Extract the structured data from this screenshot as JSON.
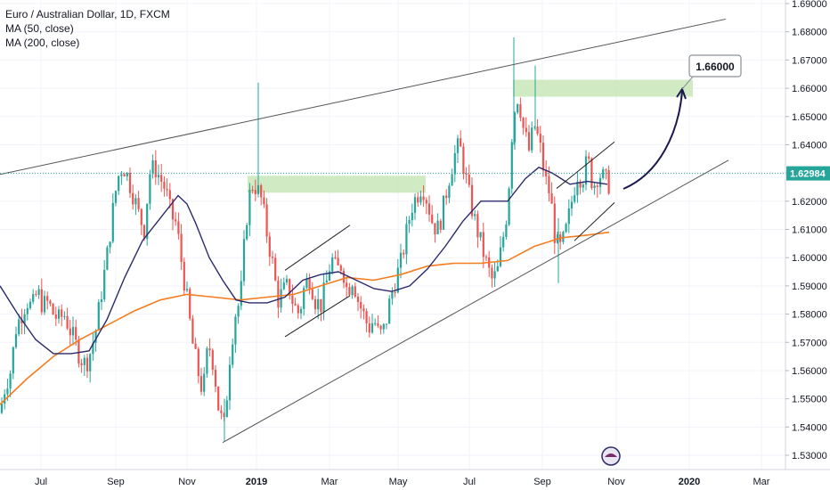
{
  "header": {
    "symbol_line": "Euro / Australian Dollar, 1D, FXCM",
    "ma50_label": "MA (50, close)",
    "ma200_label": "MA (200, close)"
  },
  "current_price_label": "1.62984",
  "target_label": "1.66000",
  "colors": {
    "bull": "#26a69a",
    "bear": "#ef5350",
    "ma50": "#2b2a6e",
    "ma200": "#f57c1f",
    "zone": "#c8e6b8",
    "price_line": "#26a69a",
    "trendline": "#555555",
    "arrow": "#1b1850"
  },
  "chart_data": {
    "type": "candlestick",
    "x_ticks": [
      "Jul",
      "Sep",
      "Nov",
      "2019",
      "Mar",
      "May",
      "Jul",
      "Sep",
      "Nov",
      "2020",
      "Mar"
    ],
    "y_ticks": [
      "1.69000",
      "1.68000",
      "1.67000",
      "1.66000",
      "1.65000",
      "1.64000",
      "1.63000",
      "1.62000",
      "1.61000",
      "1.60000",
      "1.59000",
      "1.58000",
      "1.57000",
      "1.56000",
      "1.55000",
      "1.54000",
      "1.53000"
    ],
    "ylim": [
      1.527,
      1.69
    ],
    "current_price": 1.62984,
    "target_price": 1.66,
    "price_path": [
      [
        0,
        1.545
      ],
      [
        6,
        1.555
      ],
      [
        12,
        1.56
      ],
      [
        18,
        1.575
      ],
      [
        24,
        1.58
      ],
      [
        30,
        1.585
      ],
      [
        36,
        1.582
      ],
      [
        42,
        1.588
      ],
      [
        48,
        1.583
      ],
      [
        54,
        1.584
      ],
      [
        60,
        1.58
      ],
      [
        66,
        1.578
      ],
      [
        72,
        1.58
      ],
      [
        78,
        1.575
      ],
      [
        84,
        1.57
      ],
      [
        90,
        1.565
      ],
      [
        96,
        1.562
      ],
      [
        102,
        1.567
      ],
      [
        108,
        1.575
      ],
      [
        114,
        1.588
      ],
      [
        120,
        1.6
      ],
      [
        126,
        1.615
      ],
      [
        132,
        1.628
      ],
      [
        138,
        1.633
      ],
      [
        144,
        1.628
      ],
      [
        150,
        1.622
      ],
      [
        156,
        1.615
      ],
      [
        162,
        1.61
      ],
      [
        168,
        1.63
      ],
      [
        174,
        1.632
      ],
      [
        180,
        1.628
      ],
      [
        186,
        1.624
      ],
      [
        192,
        1.615
      ],
      [
        198,
        1.612
      ],
      [
        204,
        1.598
      ],
      [
        210,
        1.585
      ],
      [
        216,
        1.57
      ],
      [
        222,
        1.56
      ],
      [
        228,
        1.552
      ],
      [
        234,
        1.57
      ],
      [
        240,
        1.562
      ],
      [
        246,
        1.545
      ],
      [
        252,
        1.54
      ],
      [
        258,
        1.565
      ],
      [
        264,
        1.58
      ],
      [
        270,
        1.585
      ],
      [
        276,
        1.612
      ],
      [
        282,
        1.626
      ],
      [
        288,
        1.625
      ],
      [
        294,
        1.62
      ],
      [
        300,
        1.608
      ],
      [
        306,
        1.598
      ],
      [
        312,
        1.585
      ],
      [
        318,
        1.588
      ],
      [
        324,
        1.59
      ],
      [
        330,
        1.583
      ],
      [
        336,
        1.58
      ],
      [
        342,
        1.59
      ],
      [
        348,
        1.593
      ],
      [
        354,
        1.585
      ],
      [
        360,
        1.583
      ],
      [
        366,
        1.59
      ],
      [
        372,
        1.6
      ],
      [
        378,
        1.595
      ],
      [
        384,
        1.598
      ],
      [
        390,
        1.588
      ],
      [
        396,
        1.593
      ],
      [
        402,
        1.585
      ],
      [
        408,
        1.58
      ],
      [
        414,
        1.575
      ],
      [
        420,
        1.578
      ],
      [
        426,
        1.572
      ],
      [
        432,
        1.575
      ],
      [
        438,
        1.585
      ],
      [
        444,
        1.592
      ],
      [
        450,
        1.598
      ],
      [
        456,
        1.608
      ],
      [
        462,
        1.618
      ],
      [
        468,
        1.622
      ],
      [
        474,
        1.626
      ],
      [
        480,
        1.62
      ],
      [
        486,
        1.612
      ],
      [
        492,
        1.61
      ],
      [
        498,
        1.618
      ],
      [
        504,
        1.628
      ],
      [
        510,
        1.636
      ],
      [
        516,
        1.64
      ],
      [
        522,
        1.63
      ],
      [
        528,
        1.62
      ],
      [
        534,
        1.612
      ],
      [
        540,
        1.605
      ],
      [
        546,
        1.598
      ],
      [
        552,
        1.592
      ],
      [
        558,
        1.594
      ],
      [
        564,
        1.605
      ],
      [
        570,
        1.618
      ],
      [
        576,
        1.65
      ],
      [
        582,
        1.658
      ],
      [
        588,
        1.645
      ],
      [
        594,
        1.638
      ],
      [
        600,
        1.647
      ],
      [
        606,
        1.64
      ],
      [
        612,
        1.628
      ],
      [
        618,
        1.622
      ],
      [
        624,
        1.605
      ],
      [
        630,
        1.603
      ],
      [
        636,
        1.61
      ],
      [
        642,
        1.62
      ],
      [
        648,
        1.63
      ],
      [
        654,
        1.628
      ],
      [
        660,
        1.635
      ],
      [
        666,
        1.625
      ],
      [
        672,
        1.63
      ],
      [
        678,
        1.628
      ],
      [
        684,
        1.626
      ],
      [
        686,
        1.62984
      ]
    ],
    "ma50": [
      [
        0,
        1.59
      ],
      [
        20,
        1.58
      ],
      [
        40,
        1.571
      ],
      [
        60,
        1.566
      ],
      [
        80,
        1.566
      ],
      [
        100,
        1.567
      ],
      [
        120,
        1.578
      ],
      [
        140,
        1.593
      ],
      [
        160,
        1.606
      ],
      [
        180,
        1.614
      ],
      [
        200,
        1.622
      ],
      [
        210,
        1.619
      ],
      [
        220,
        1.612
      ],
      [
        235,
        1.6
      ],
      [
        250,
        1.592
      ],
      [
        265,
        1.585
      ],
      [
        280,
        1.584
      ],
      [
        300,
        1.584
      ],
      [
        320,
        1.586
      ],
      [
        340,
        1.592
      ],
      [
        360,
        1.594
      ],
      [
        380,
        1.595
      ],
      [
        400,
        1.592
      ],
      [
        420,
        1.589
      ],
      [
        440,
        1.588
      ],
      [
        460,
        1.59
      ],
      [
        480,
        1.596
      ],
      [
        500,
        1.604
      ],
      [
        520,
        1.613
      ],
      [
        540,
        1.62
      ],
      [
        555,
        1.62
      ],
      [
        570,
        1.62
      ],
      [
        590,
        1.628
      ],
      [
        605,
        1.632
      ],
      [
        620,
        1.63
      ],
      [
        640,
        1.626
      ],
      [
        660,
        1.627
      ],
      [
        682,
        1.626
      ]
    ],
    "ma200": [
      [
        0,
        1.548
      ],
      [
        30,
        1.557
      ],
      [
        60,
        1.565
      ],
      [
        90,
        1.571
      ],
      [
        120,
        1.576
      ],
      [
        150,
        1.581
      ],
      [
        180,
        1.585
      ],
      [
        210,
        1.587
      ],
      [
        240,
        1.586
      ],
      [
        270,
        1.585
      ],
      [
        300,
        1.586
      ],
      [
        330,
        1.587
      ],
      [
        360,
        1.59
      ],
      [
        390,
        1.593
      ],
      [
        420,
        1.592
      ],
      [
        450,
        1.594
      ],
      [
        480,
        1.597
      ],
      [
        510,
        1.598
      ],
      [
        540,
        1.598
      ],
      [
        570,
        1.599
      ],
      [
        600,
        1.604
      ],
      [
        630,
        1.607
      ],
      [
        660,
        1.608
      ],
      [
        684,
        1.609
      ]
    ],
    "trendlines": [
      {
        "name": "upper-channel",
        "x1": 0,
        "y1": 1.6295,
        "x2": 815,
        "y2": 1.6845
      },
      {
        "name": "lower-channel",
        "x1": 250,
        "y1": 1.5345,
        "x2": 818,
        "y2": 1.6345
      },
      {
        "name": "mini-channel-1-top",
        "x1": 320,
        "y1": 1.5955,
        "x2": 393,
        "y2": 1.6115
      },
      {
        "name": "mini-channel-1-bottom",
        "x1": 320,
        "y1": 1.572,
        "x2": 393,
        "y2": 1.5865
      },
      {
        "name": "mini-channel-2-top",
        "x1": 625,
        "y1": 1.6245,
        "x2": 690,
        "y2": 1.641
      },
      {
        "name": "mini-channel-2-bottom",
        "x1": 645,
        "y1": 1.606,
        "x2": 690,
        "y2": 1.6195
      }
    ],
    "zones": [
      {
        "name": "resistance-zone-left",
        "x1": 278,
        "x2": 478,
        "low": 1.623,
        "high": 1.629
      },
      {
        "name": "target-zone",
        "x1": 576,
        "x2": 778,
        "low": 1.657,
        "high": 1.663
      }
    ]
  }
}
